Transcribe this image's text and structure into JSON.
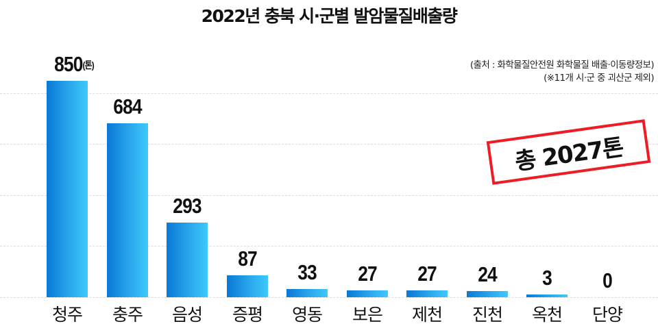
{
  "title": "2022년 충북 시·군별 발암물질배출량",
  "source": {
    "line1": "(출처 : 화학물질안전원 화학물질 배출·이동량정보)",
    "line2": "(※11개 시·군 중 괴산군 제외)"
  },
  "stamp": {
    "text": "총 2027톤",
    "border_color": "#ee1c24"
  },
  "unit_label": "(톤)",
  "colors": {
    "bar_gradient_start": "#0a78d6",
    "bar_gradient_end": "#3ec9fb",
    "grid": "#dcdcdc"
  },
  "bars": [
    {
      "label": "청주",
      "value": "850"
    },
    {
      "label": "충주",
      "value": "684"
    },
    {
      "label": "음성",
      "value": "293"
    },
    {
      "label": "증평",
      "value": "87"
    },
    {
      "label": "영동",
      "value": "33"
    },
    {
      "label": "보은",
      "value": "27"
    },
    {
      "label": "제천",
      "value": "27"
    },
    {
      "label": "진천",
      "value": "24"
    },
    {
      "label": "옥천",
      "value": "3"
    },
    {
      "label": "단양",
      "value": "0"
    }
  ],
  "chart_data": {
    "type": "bar",
    "title": "2022년 충북 시·군별 발암물질배출량",
    "categories": [
      "청주",
      "충주",
      "음성",
      "증평",
      "영동",
      "보은",
      "제천",
      "진천",
      "옥천",
      "단양"
    ],
    "values": [
      850,
      684,
      293,
      87,
      33,
      27,
      27,
      24,
      3,
      0
    ],
    "unit": "톤",
    "xlabel": "",
    "ylabel": "",
    "grid": true,
    "legend": null,
    "annotations": [
      "총 2027톤",
      "(출처 : 화학물질안전원 화학물질 배출·이동량정보)",
      "(※11개 시·군 중 괴산군 제외)"
    ]
  }
}
